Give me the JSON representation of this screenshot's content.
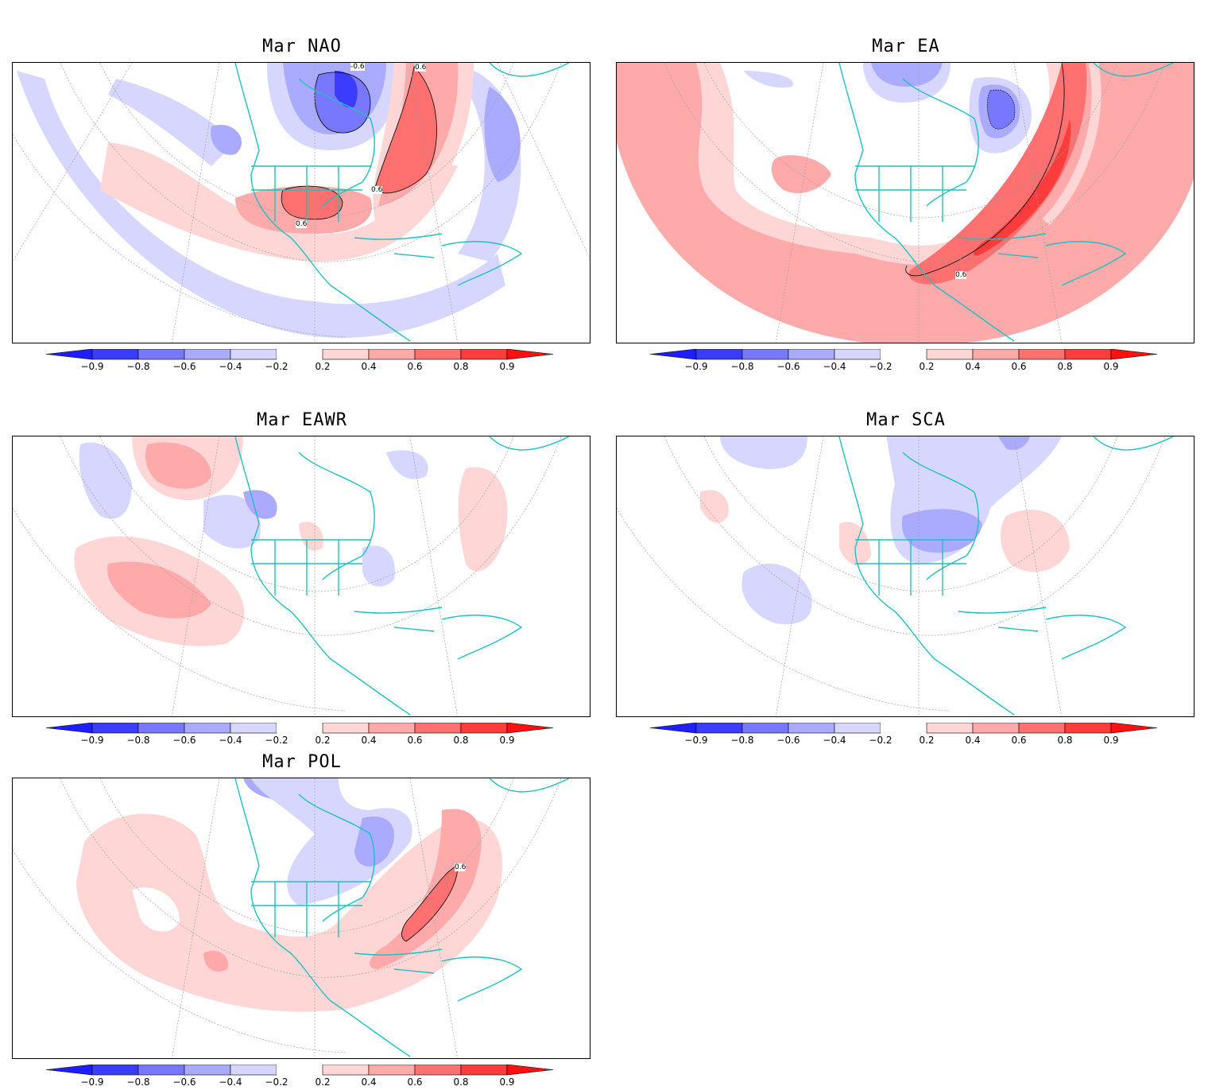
{
  "panels": [
    {
      "id": "nao",
      "title": "Mar  NAO",
      "contour_labels": [
        "-0.6",
        "0.6",
        "0.6",
        "0.6"
      ]
    },
    {
      "id": "ea",
      "title": "Mar  EA",
      "contour_labels": [
        "0.6"
      ]
    },
    {
      "id": "eawr",
      "title": "Mar  EAWR",
      "contour_labels": []
    },
    {
      "id": "sca",
      "title": "Mar  SCA",
      "contour_labels": []
    },
    {
      "id": "pol",
      "title": "Mar  POL",
      "contour_labels": [
        "0.6"
      ]
    }
  ],
  "colorbar": {
    "labels": [
      "−0.9",
      "−0.8",
      "−0.6",
      "−0.4",
      "−0.2",
      "0.2",
      "0.4",
      "0.6",
      "0.8",
      "0.9"
    ],
    "colors": [
      "#1e1eff",
      "#3c3cff",
      "#7878ff",
      "#aaaaff",
      "#d6d6ff",
      "#ffffff",
      "#ffd6d6",
      "#ffaaaa",
      "#ff7070",
      "#ff3c3c",
      "#ff1010"
    ]
  },
  "map_colors": {
    "coastline": "#20c0c0",
    "grid": "#a0a0a0",
    "contour": "#000000"
  }
}
